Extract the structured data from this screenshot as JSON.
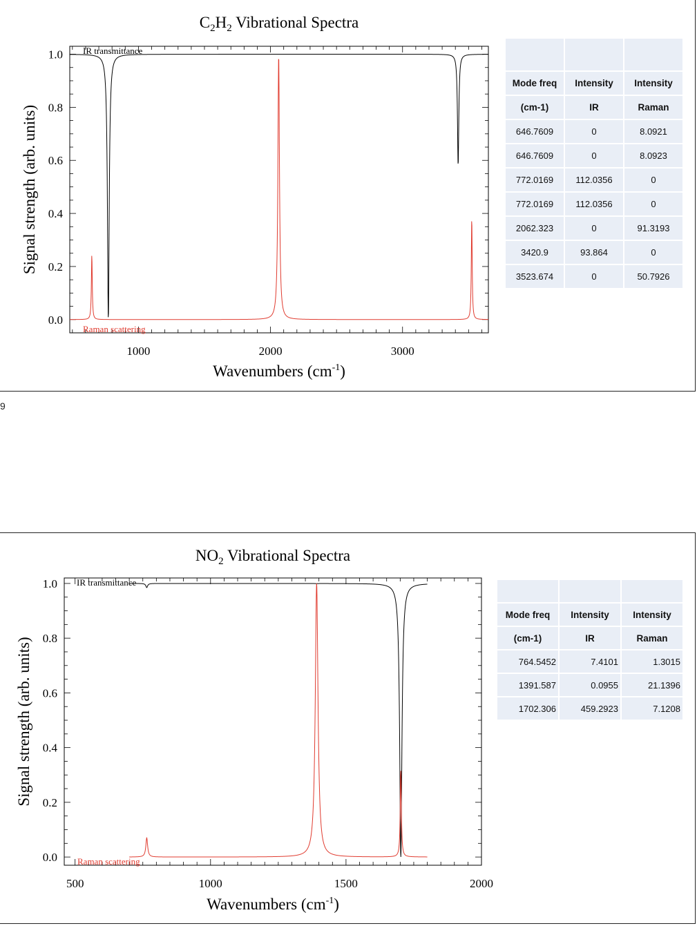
{
  "page": {
    "stray_char": "9"
  },
  "charts": [
    {
      "id": "c2h2",
      "title_prefix": "C",
      "title_sub1": "2",
      "title_mid": "H",
      "title_sub2": "2",
      "title_rest": " Vibrational Spectra",
      "xlabel_main": "Wavenumbers (cm",
      "xlabel_sup": "-1",
      "xlabel_end": ")",
      "ylabel": "Signal strength (arb. units)",
      "ir_label": "IR transmittance",
      "raman_label": "Raman scattering",
      "xlim": [
        480,
        3650
      ],
      "ylim": [
        -0.05,
        1.03
      ],
      "yticks": [
        "0.0",
        "0.2",
        "0.4",
        "0.6",
        "0.8",
        "1.0"
      ],
      "ytick_values": [
        0,
        0.2,
        0.4,
        0.6,
        0.8,
        1.0
      ],
      "xticks": [
        "1000",
        "2000",
        "3000"
      ],
      "xtick_values": [
        1000,
        2000,
        3000
      ],
      "table": {
        "headers": [
          "Mode freq",
          "Intensity",
          "Intensity"
        ],
        "subheaders": [
          "(cm-1)",
          "IR",
          "Raman"
        ],
        "rows": [
          [
            "646.7609",
            "0",
            "8.0921"
          ],
          [
            "646.7609",
            "0",
            "8.0923"
          ],
          [
            "772.0169",
            "112.0356",
            "0"
          ],
          [
            "772.0169",
            "112.0356",
            "0"
          ],
          [
            "2062.323",
            "0",
            "91.3193"
          ],
          [
            "3420.9",
            "93.864",
            "0"
          ],
          [
            "3523.674",
            "0",
            "50.7926"
          ]
        ]
      }
    },
    {
      "id": "no2",
      "title_prefix": "NO",
      "title_sub1": "2",
      "title_mid": "",
      "title_sub2": "",
      "title_rest": " Vibrational Spectra",
      "xlabel_main": "Wavenumbers (cm",
      "xlabel_sup": "-1",
      "xlabel_end": ")",
      "ylabel": "Signal strength (arb. units)",
      "ir_label": "IR transmittance",
      "raman_label": "Raman scattering",
      "xlim": [
        460,
        2000
      ],
      "ylim": [
        -0.03,
        1.02
      ],
      "yticks": [
        "0.0",
        "0.2",
        "0.4",
        "0.6",
        "0.8",
        "1.0"
      ],
      "ytick_values": [
        0,
        0.2,
        0.4,
        0.6,
        0.8,
        1.0
      ],
      "xticks": [
        "500",
        "1000",
        "1500",
        "2000"
      ],
      "xtick_values": [
        500,
        1000,
        1500,
        2000
      ],
      "table": {
        "headers": [
          "Mode freq",
          "Intensity",
          "Intensity"
        ],
        "subheaders": [
          "(cm-1)",
          "IR",
          "Raman"
        ],
        "rows": [
          [
            "764.5452",
            "7.4101",
            "1.3015"
          ],
          [
            "1391.587",
            "0.0955",
            "21.1396"
          ],
          [
            "1702.306",
            "459.2923",
            "7.1208"
          ]
        ]
      }
    }
  ],
  "chart_data": [
    {
      "type": "line",
      "title": "C2H2 Vibrational Spectra",
      "xlabel": "Wavenumbers (cm-1)",
      "ylabel": "Signal strength (arb. units)",
      "xlim": [
        480,
        3650
      ],
      "ylim": [
        0,
        1.0
      ],
      "series": [
        {
          "name": "IR transmittance",
          "color": "#000000",
          "baseline": 1.0,
          "peaks": [
            {
              "x": 772,
              "min": 0.0,
              "width": 8
            },
            {
              "x": 3421,
              "min": 0.58,
              "width": 6
            }
          ],
          "range": [
            480,
            3650
          ]
        },
        {
          "name": "Raman scattering",
          "color": "#e03a2e",
          "baseline": 0.0,
          "peaks": [
            {
              "x": 647,
              "height": 0.245,
              "width": 4
            },
            {
              "x": 2062,
              "height": 1.0,
              "width": 7
            },
            {
              "x": 3524,
              "height": 0.385,
              "width": 4
            }
          ],
          "range": [
            480,
            3650
          ]
        }
      ]
    },
    {
      "type": "line",
      "title": "NO2 Vibrational Spectra",
      "xlabel": "Wavenumbers (cm-1)",
      "ylabel": "Signal strength (arb. units)",
      "xlim": [
        460,
        2000
      ],
      "ylim": [
        0,
        1.0
      ],
      "series": [
        {
          "name": "IR transmittance",
          "color": "#000000",
          "baseline": 1.0,
          "peaks": [
            {
              "x": 764.5,
              "min": 0.985,
              "width": 4
            },
            {
              "x": 1391.6,
              "min": 0.9995,
              "width": 4
            },
            {
              "x": 1702.3,
              "min": 0.0,
              "width": 5
            }
          ],
          "range": [
            700,
            1800
          ]
        },
        {
          "name": "Raman scattering",
          "color": "#e03a2e",
          "baseline": 0.0,
          "peaks": [
            {
              "x": 764.5,
              "height": 0.07,
              "width": 4
            },
            {
              "x": 1391.6,
              "height": 1.0,
              "width": 6
            },
            {
              "x": 1702.3,
              "height": 0.315,
              "width": 2.5
            }
          ],
          "range": [
            700,
            1800
          ]
        }
      ]
    }
  ]
}
